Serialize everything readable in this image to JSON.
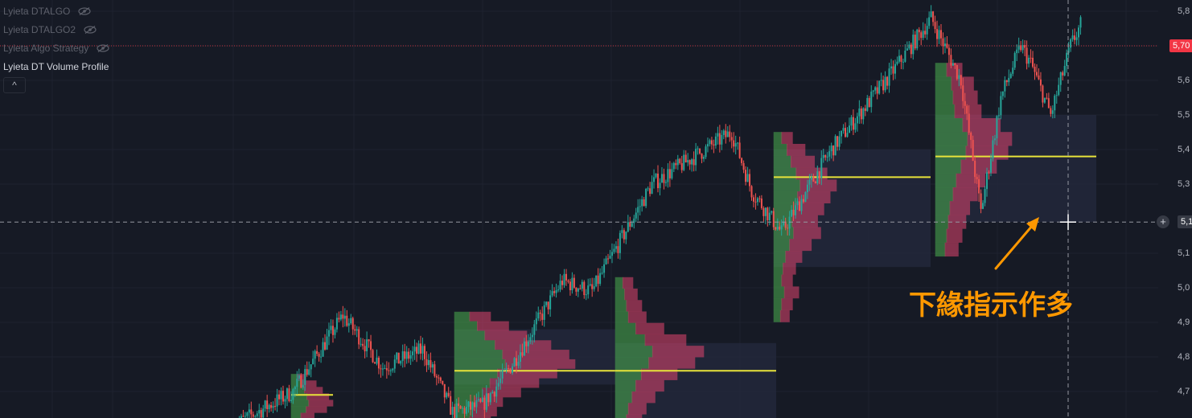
{
  "legend": {
    "items": [
      {
        "label": "Lyieta DTALGO",
        "icon": "eye-off-icon",
        "visible": false
      },
      {
        "label": "Lyieta DTALGO2",
        "icon": "eye-off-icon",
        "visible": false
      },
      {
        "label": "Lyieta Algo Strategy",
        "icon": "eye-off-icon",
        "visible": false
      },
      {
        "label": "Lyieta DT Volume Profile",
        "icon": "",
        "visible": true
      }
    ],
    "collapse_icon": "chevron-up-icon",
    "collapse_label": "^"
  },
  "annotation": {
    "text": "下緣指示作多",
    "color": "#ff9800"
  },
  "colors": {
    "up": "#26a69a",
    "down": "#ef5350",
    "poc": "#e8e33a",
    "profile_up": "#4caf50",
    "profile_down": "#e0456e",
    "value_area": "#242a3d",
    "arrow": "#ff9800",
    "last_price": "#f23645"
  },
  "chart_data": {
    "type": "candlestick",
    "title": "",
    "xlabel": "",
    "ylabel": "",
    "ylim": [
      4.64,
      5.85
    ],
    "y_ticks": [
      "5,8",
      "5,7",
      "5,6",
      "5,5",
      "5,4",
      "5,3",
      "5,1",
      "5,0",
      "4,9",
      "4,8",
      "4,7"
    ],
    "y_tick_values": [
      5.8,
      5.7,
      5.6,
      5.5,
      5.4,
      5.3,
      5.1,
      5.0,
      4.9,
      4.8,
      4.7
    ],
    "last_price": {
      "label": "5,70",
      "value": 5.7
    },
    "crosshair_price": {
      "label": "5,1",
      "value": 5.19
    },
    "trend_anchors": [
      {
        "x": 0,
        "y": 4.6
      },
      {
        "x": 30,
        "y": 4.7
      },
      {
        "x": 55,
        "y": 4.92
      },
      {
        "x": 75,
        "y": 4.77
      },
      {
        "x": 95,
        "y": 4.82
      },
      {
        "x": 110,
        "y": 4.64
      },
      {
        "x": 125,
        "y": 4.66
      },
      {
        "x": 140,
        "y": 4.78
      },
      {
        "x": 165,
        "y": 5.02
      },
      {
        "x": 180,
        "y": 4.99
      },
      {
        "x": 210,
        "y": 5.3
      },
      {
        "x": 250,
        "y": 5.45
      },
      {
        "x": 260,
        "y": 5.28
      },
      {
        "x": 275,
        "y": 5.16
      },
      {
        "x": 300,
        "y": 5.4
      },
      {
        "x": 330,
        "y": 5.62
      },
      {
        "x": 350,
        "y": 5.78
      },
      {
        "x": 365,
        "y": 5.6
      },
      {
        "x": 375,
        "y": 5.22
      },
      {
        "x": 385,
        "y": 5.55
      },
      {
        "x": 395,
        "y": 5.7
      },
      {
        "x": 400,
        "y": 5.65
      },
      {
        "x": 410,
        "y": 5.5
      },
      {
        "x": 420,
        "y": 5.7
      },
      {
        "x": 425,
        "y": 5.76
      }
    ],
    "volume_profiles": [
      {
        "price_top": 4.75,
        "price_bottom": 4.6,
        "poc": 4.69,
        "va_top": 4.73,
        "va_bottom": 4.64,
        "bars": [
          0.35,
          0.6,
          0.75,
          0.9,
          1.0,
          0.85,
          0.55,
          0.4
        ]
      },
      {
        "price_top": 4.93,
        "price_bottom": 4.6,
        "poc": 4.76,
        "va_top": 4.88,
        "va_bottom": 4.72,
        "bars": [
          0.3,
          0.45,
          0.6,
          0.8,
          0.95,
          1.0,
          0.85,
          0.7,
          0.55,
          0.4,
          0.35,
          0.3
        ]
      },
      {
        "price_top": 5.03,
        "price_bottom": 4.6,
        "poc": 4.76,
        "va_top": 4.84,
        "va_bottom": 4.6,
        "bars": [
          0.2,
          0.25,
          0.3,
          0.35,
          0.55,
          0.8,
          1.0,
          0.9,
          0.7,
          0.55,
          0.45,
          0.35,
          0.3
        ]
      },
      {
        "price_top": 5.45,
        "price_bottom": 4.9,
        "poc": 5.32,
        "va_top": 5.4,
        "va_bottom": 5.06,
        "bars": [
          0.3,
          0.5,
          0.65,
          0.85,
          1.0,
          0.9,
          0.8,
          0.7,
          0.75,
          0.6,
          0.45,
          0.35,
          0.3,
          0.4,
          0.3,
          0.25
        ]
      },
      {
        "price_top": 5.65,
        "price_bottom": 5.09,
        "poc": 5.38,
        "va_top": 5.5,
        "va_bottom": 5.19,
        "bars": [
          0.35,
          0.5,
          0.55,
          0.6,
          0.85,
          1.0,
          0.95,
          0.8,
          0.65,
          0.55,
          0.45,
          0.4,
          0.35,
          0.3
        ]
      }
    ]
  }
}
